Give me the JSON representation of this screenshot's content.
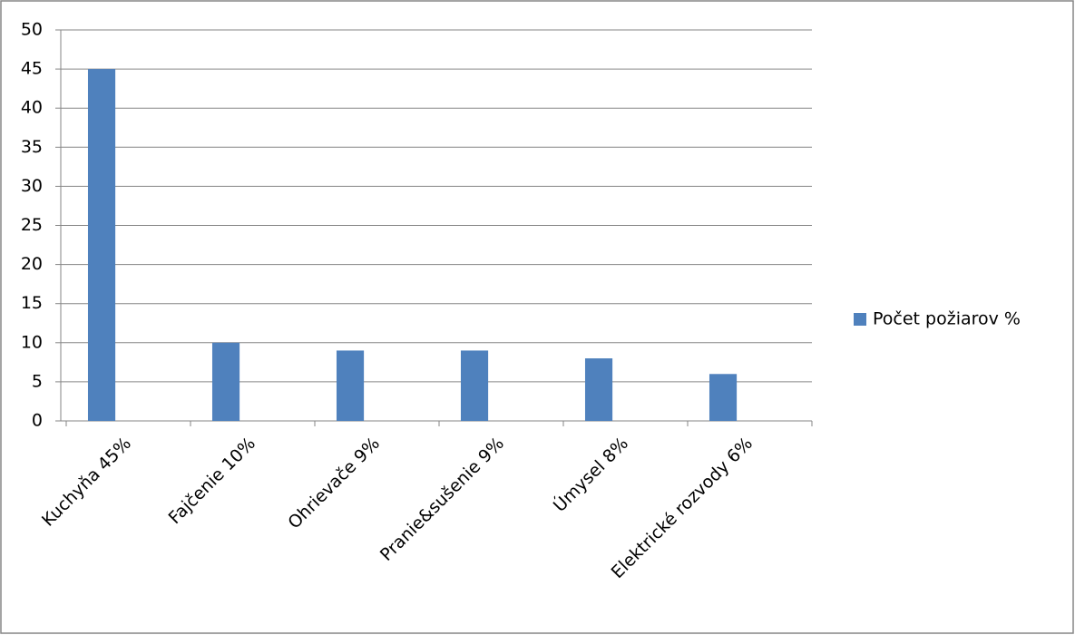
{
  "chart_data": {
    "type": "bar",
    "categories": [
      "Kuchyňa 45%",
      "Fajčenie 10%",
      "Ohrievače 9%",
      "Pranie&sušenie 9%",
      "Úmysel 8%",
      "Elektrické rozvody 6%"
    ],
    "series": [
      {
        "name": "Počet požiarov %",
        "color": "#4f81bd",
        "values": [
          45,
          10,
          9,
          9,
          8,
          6
        ]
      }
    ],
    "ylim": [
      0,
      50
    ],
    "yticks": [
      0,
      5,
      10,
      15,
      20,
      25,
      30,
      35,
      40,
      45,
      50
    ],
    "grid": true,
    "legend": "right"
  }
}
